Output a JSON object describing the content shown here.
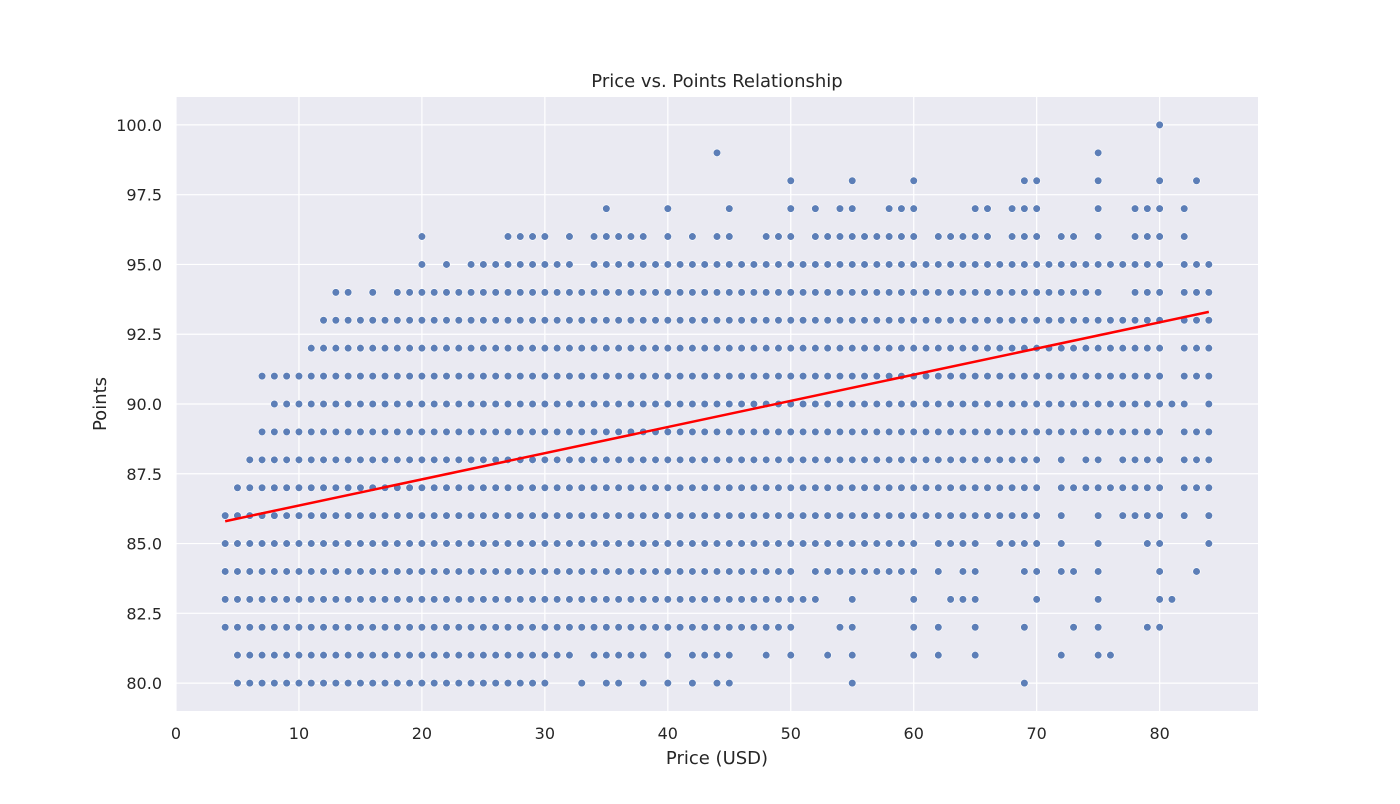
{
  "chart_data": {
    "type": "scatter",
    "title": "Price vs. Points Relationship",
    "xlabel": "Price (USD)",
    "ylabel": "Points",
    "xlim": [
      0,
      88
    ],
    "ylim": [
      79,
      101
    ],
    "x_ticks": [
      0,
      10,
      20,
      30,
      40,
      50,
      60,
      70,
      80
    ],
    "y_ticks": [
      80.0,
      82.5,
      85.0,
      87.5,
      90.0,
      92.5,
      95.0,
      97.5,
      100.0
    ],
    "x_tick_labels": [
      "0",
      "10",
      "20",
      "30",
      "40",
      "50",
      "60",
      "70",
      "80"
    ],
    "y_tick_labels": [
      "80.0",
      "82.5",
      "85.0",
      "87.5",
      "90.0",
      "92.5",
      "95.0",
      "97.5",
      "100.0"
    ],
    "grid": true,
    "background_color": "#eaeaf2",
    "point_color": "#4c72b0",
    "regression_line_color": "#ff0000",
    "regression_line": {
      "x": [
        4,
        84
      ],
      "y": [
        85.8,
        93.3
      ]
    },
    "points_by_points_level": [
      {
        "points": 80,
        "prices": [
          5,
          6,
          7,
          8,
          9,
          10,
          11,
          12,
          13,
          14,
          15,
          16,
          17,
          18,
          19,
          20,
          21,
          22,
          23,
          24,
          25,
          26,
          27,
          28,
          29,
          30,
          33,
          35,
          36,
          38,
          40,
          42,
          44,
          45,
          55,
          69
        ]
      },
      {
        "points": 81,
        "prices": [
          5,
          6,
          7,
          8,
          9,
          10,
          11,
          12,
          13,
          14,
          15,
          16,
          17,
          18,
          19,
          20,
          21,
          22,
          23,
          24,
          25,
          26,
          27,
          28,
          29,
          30,
          31,
          32,
          34,
          35,
          36,
          37,
          38,
          40,
          42,
          43,
          44,
          45,
          48,
          50,
          53,
          55,
          60,
          62,
          65,
          72,
          75,
          76
        ]
      },
      {
        "points": 82,
        "prices": [
          4,
          5,
          6,
          7,
          8,
          9,
          10,
          11,
          12,
          13,
          14,
          15,
          16,
          17,
          18,
          19,
          20,
          21,
          22,
          23,
          24,
          25,
          26,
          27,
          28,
          29,
          30,
          31,
          32,
          33,
          34,
          35,
          36,
          37,
          38,
          39,
          40,
          41,
          42,
          43,
          44,
          45,
          46,
          47,
          48,
          49,
          50,
          54,
          55,
          60,
          62,
          65,
          69,
          73,
          75,
          79,
          80
        ]
      },
      {
        "points": 83,
        "prices": [
          4,
          5,
          6,
          7,
          8,
          9,
          10,
          11,
          12,
          13,
          14,
          15,
          16,
          17,
          18,
          19,
          20,
          21,
          22,
          23,
          24,
          25,
          26,
          27,
          28,
          29,
          30,
          31,
          32,
          33,
          34,
          35,
          36,
          37,
          38,
          39,
          40,
          41,
          42,
          43,
          44,
          45,
          46,
          47,
          48,
          49,
          50,
          51,
          52,
          55,
          60,
          63,
          64,
          65,
          70,
          75,
          80,
          81
        ]
      },
      {
        "points": 84,
        "prices": [
          4,
          5,
          6,
          7,
          8,
          9,
          10,
          11,
          12,
          13,
          14,
          15,
          16,
          17,
          18,
          19,
          20,
          21,
          22,
          23,
          24,
          25,
          26,
          27,
          28,
          29,
          30,
          31,
          32,
          33,
          34,
          35,
          36,
          37,
          38,
          39,
          40,
          41,
          42,
          43,
          44,
          45,
          46,
          47,
          48,
          49,
          50,
          52,
          53,
          54,
          55,
          56,
          57,
          58,
          59,
          60,
          62,
          64,
          65,
          69,
          70,
          72,
          73,
          75,
          80,
          83
        ]
      },
      {
        "points": 85,
        "prices": [
          4,
          5,
          6,
          7,
          8,
          9,
          10,
          11,
          12,
          13,
          14,
          15,
          16,
          17,
          18,
          19,
          20,
          21,
          22,
          23,
          24,
          25,
          26,
          27,
          28,
          29,
          30,
          31,
          32,
          33,
          34,
          35,
          36,
          37,
          38,
          39,
          40,
          41,
          42,
          43,
          44,
          45,
          46,
          47,
          48,
          49,
          50,
          51,
          52,
          53,
          54,
          55,
          56,
          57,
          58,
          59,
          60,
          62,
          63,
          64,
          65,
          67,
          68,
          69,
          70,
          72,
          75,
          79,
          80,
          84
        ]
      },
      {
        "points": 86,
        "prices": [
          4,
          5,
          6,
          7,
          8,
          9,
          10,
          11,
          12,
          13,
          14,
          15,
          16,
          17,
          18,
          19,
          20,
          21,
          22,
          23,
          24,
          25,
          26,
          27,
          28,
          29,
          30,
          31,
          32,
          33,
          34,
          35,
          36,
          37,
          38,
          39,
          40,
          41,
          42,
          43,
          44,
          45,
          46,
          47,
          48,
          49,
          50,
          51,
          52,
          53,
          54,
          55,
          56,
          57,
          58,
          59,
          60,
          61,
          62,
          63,
          64,
          65,
          66,
          67,
          68,
          69,
          70,
          72,
          75,
          77,
          78,
          79,
          80,
          82,
          84
        ]
      },
      {
        "points": 87,
        "prices": [
          5,
          6,
          7,
          8,
          9,
          10,
          11,
          12,
          13,
          14,
          15,
          16,
          17,
          18,
          19,
          20,
          21,
          22,
          23,
          24,
          25,
          26,
          27,
          28,
          29,
          30,
          31,
          32,
          33,
          34,
          35,
          36,
          37,
          38,
          39,
          40,
          41,
          42,
          43,
          44,
          45,
          46,
          47,
          48,
          49,
          50,
          51,
          52,
          53,
          54,
          55,
          56,
          57,
          58,
          59,
          60,
          61,
          62,
          63,
          64,
          65,
          66,
          67,
          68,
          69,
          70,
          72,
          73,
          74,
          75,
          76,
          77,
          78,
          79,
          80,
          82,
          83,
          84
        ]
      },
      {
        "points": 88,
        "prices": [
          6,
          7,
          8,
          9,
          10,
          11,
          12,
          13,
          14,
          15,
          16,
          17,
          18,
          19,
          20,
          21,
          22,
          23,
          24,
          25,
          26,
          27,
          28,
          29,
          30,
          31,
          32,
          33,
          34,
          35,
          36,
          37,
          38,
          39,
          40,
          41,
          42,
          43,
          44,
          45,
          46,
          47,
          48,
          49,
          50,
          51,
          52,
          53,
          54,
          55,
          56,
          57,
          58,
          59,
          60,
          61,
          62,
          63,
          64,
          65,
          66,
          67,
          68,
          69,
          70,
          72,
          74,
          75,
          77,
          78,
          79,
          80,
          82,
          83,
          84
        ]
      },
      {
        "points": 89,
        "prices": [
          7,
          8,
          9,
          10,
          11,
          12,
          13,
          14,
          15,
          16,
          17,
          18,
          19,
          20,
          21,
          22,
          23,
          24,
          25,
          26,
          27,
          28,
          29,
          30,
          31,
          32,
          33,
          34,
          35,
          36,
          37,
          38,
          39,
          40,
          41,
          42,
          43,
          44,
          45,
          46,
          47,
          48,
          49,
          50,
          51,
          52,
          53,
          54,
          55,
          56,
          57,
          58,
          59,
          60,
          61,
          62,
          63,
          64,
          65,
          66,
          67,
          68,
          69,
          70,
          71,
          72,
          73,
          74,
          75,
          76,
          77,
          78,
          79,
          80,
          82,
          83,
          84
        ]
      },
      {
        "points": 90,
        "prices": [
          8,
          9,
          10,
          11,
          12,
          13,
          14,
          15,
          16,
          17,
          18,
          19,
          20,
          21,
          22,
          23,
          24,
          25,
          26,
          27,
          28,
          29,
          30,
          31,
          32,
          33,
          34,
          35,
          36,
          37,
          38,
          39,
          40,
          41,
          42,
          43,
          44,
          45,
          46,
          47,
          48,
          49,
          50,
          51,
          52,
          53,
          54,
          55,
          56,
          57,
          58,
          59,
          60,
          61,
          62,
          63,
          64,
          65,
          66,
          67,
          68,
          69,
          70,
          71,
          72,
          73,
          74,
          75,
          76,
          77,
          78,
          79,
          80,
          81,
          82,
          84
        ]
      },
      {
        "points": 91,
        "prices": [
          7,
          8,
          9,
          10,
          11,
          12,
          13,
          14,
          15,
          16,
          17,
          18,
          19,
          20,
          21,
          22,
          23,
          24,
          25,
          26,
          27,
          28,
          29,
          30,
          31,
          32,
          33,
          34,
          35,
          36,
          37,
          38,
          39,
          40,
          41,
          42,
          43,
          44,
          45,
          46,
          47,
          48,
          49,
          50,
          51,
          52,
          53,
          54,
          55,
          56,
          57,
          58,
          59,
          60,
          61,
          62,
          63,
          64,
          65,
          66,
          67,
          68,
          69,
          70,
          71,
          72,
          73,
          74,
          75,
          76,
          77,
          78,
          79,
          80,
          82,
          83,
          84
        ]
      },
      {
        "points": 92,
        "prices": [
          11,
          12,
          13,
          14,
          15,
          16,
          17,
          18,
          19,
          20,
          21,
          22,
          23,
          24,
          25,
          26,
          27,
          28,
          29,
          30,
          31,
          32,
          33,
          34,
          35,
          36,
          37,
          38,
          39,
          40,
          41,
          42,
          43,
          44,
          45,
          46,
          47,
          48,
          49,
          50,
          51,
          52,
          53,
          54,
          55,
          56,
          57,
          58,
          59,
          60,
          61,
          62,
          63,
          64,
          65,
          66,
          67,
          68,
          69,
          70,
          71,
          72,
          73,
          74,
          75,
          76,
          77,
          78,
          79,
          80,
          82,
          83,
          84
        ]
      },
      {
        "points": 93,
        "prices": [
          12,
          13,
          14,
          15,
          16,
          17,
          18,
          19,
          20,
          21,
          22,
          23,
          24,
          25,
          26,
          27,
          28,
          29,
          30,
          31,
          32,
          33,
          34,
          35,
          36,
          37,
          38,
          39,
          40,
          41,
          42,
          43,
          44,
          45,
          46,
          47,
          48,
          49,
          50,
          51,
          52,
          53,
          54,
          55,
          56,
          57,
          58,
          59,
          60,
          61,
          62,
          63,
          64,
          65,
          66,
          67,
          68,
          69,
          70,
          71,
          72,
          73,
          74,
          75,
          76,
          77,
          78,
          79,
          80,
          82,
          83,
          84
        ]
      },
      {
        "points": 94,
        "prices": [
          13,
          14,
          16,
          18,
          19,
          20,
          21,
          22,
          23,
          24,
          25,
          26,
          27,
          28,
          29,
          30,
          31,
          32,
          33,
          34,
          35,
          36,
          37,
          38,
          39,
          40,
          41,
          42,
          43,
          44,
          45,
          46,
          47,
          48,
          49,
          50,
          51,
          52,
          53,
          54,
          55,
          56,
          57,
          58,
          59,
          60,
          61,
          62,
          63,
          64,
          65,
          66,
          67,
          68,
          69,
          70,
          71,
          72,
          73,
          74,
          75,
          78,
          79,
          80,
          82,
          83,
          84
        ]
      },
      {
        "points": 95,
        "prices": [
          20,
          22,
          24,
          25,
          26,
          27,
          28,
          29,
          30,
          31,
          32,
          34,
          35,
          36,
          37,
          38,
          39,
          40,
          41,
          42,
          43,
          44,
          45,
          46,
          47,
          48,
          49,
          50,
          51,
          52,
          53,
          54,
          55,
          56,
          57,
          58,
          59,
          60,
          61,
          62,
          63,
          64,
          65,
          66,
          67,
          68,
          69,
          70,
          71,
          72,
          73,
          74,
          75,
          76,
          77,
          78,
          79,
          80,
          82,
          83,
          84
        ]
      },
      {
        "points": 96,
        "prices": [
          20,
          27,
          28,
          29,
          30,
          32,
          34,
          35,
          36,
          37,
          38,
          40,
          42,
          44,
          45,
          48,
          49,
          50,
          52,
          53,
          54,
          55,
          56,
          57,
          58,
          59,
          60,
          62,
          63,
          64,
          65,
          66,
          68,
          69,
          70,
          72,
          73,
          75,
          78,
          79,
          80,
          82
        ]
      },
      {
        "points": 97,
        "prices": [
          35,
          40,
          45,
          50,
          52,
          54,
          55,
          58,
          59,
          60,
          65,
          66,
          68,
          69,
          70,
          75,
          78,
          79,
          80,
          82
        ]
      },
      {
        "points": 98,
        "prices": [
          50,
          55,
          60,
          69,
          70,
          75,
          80,
          83
        ]
      },
      {
        "points": 99,
        "prices": [
          44,
          75
        ]
      },
      {
        "points": 100,
        "prices": [
          80
        ]
      }
    ]
  }
}
